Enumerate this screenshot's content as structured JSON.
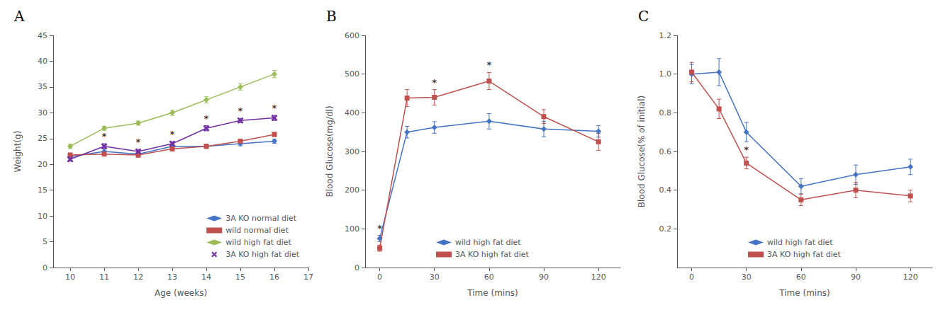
{
  "chart_data": [
    {
      "type": "line",
      "title": "A",
      "x_label": "Age (weeks)",
      "y_label": "Weight(g)",
      "xlim": [
        9.5,
        17
      ],
      "ylim": [
        0,
        45
      ],
      "xticks": [
        10,
        11,
        12,
        13,
        14,
        15,
        16,
        17
      ],
      "yticks": [
        0,
        5,
        10,
        15,
        20,
        25,
        30,
        35,
        40,
        45
      ],
      "legend": "lower right",
      "series": [
        {
          "name": "3A KO normal diet",
          "color": "#4472C4",
          "marker": "diamond",
          "x": [
            10,
            11,
            12,
            13,
            14,
            15,
            16
          ],
          "values": [
            21.5,
            22.5,
            22.0,
            23.5,
            23.5,
            24.0,
            24.5
          ],
          "yerr": [
            0.4,
            0.5,
            0.4,
            0.4,
            0.4,
            0.4,
            0.4
          ],
          "annotations": []
        },
        {
          "name": "wild normal diet",
          "color": "#C0504D",
          "marker": "square",
          "x": [
            10,
            11,
            12,
            13,
            14,
            15,
            16
          ],
          "values": [
            21.8,
            22.0,
            21.8,
            23.0,
            23.5,
            24.5,
            25.8
          ],
          "yerr": [
            0.4,
            0.4,
            0.4,
            0.4,
            0.4,
            0.4,
            0.4
          ],
          "annotations": []
        },
        {
          "name": "wild high fat diet",
          "color": "#9BBB59",
          "marker": "diamond",
          "x": [
            10,
            11,
            12,
            13,
            14,
            15,
            16
          ],
          "values": [
            23.5,
            27.0,
            28.0,
            30.0,
            32.5,
            35.0,
            37.5
          ],
          "yerr": [
            0.4,
            0.4,
            0.4,
            0.5,
            0.6,
            0.6,
            0.7
          ],
          "annotations": []
        },
        {
          "name": "3A KO high fat diet",
          "color": "#7030A0",
          "marker": "x",
          "x": [
            10,
            11,
            12,
            13,
            14,
            15,
            16
          ],
          "values": [
            21.0,
            23.5,
            22.5,
            24.0,
            27.0,
            28.5,
            29.0
          ],
          "yerr": [
            0.4,
            0.5,
            0.4,
            0.4,
            0.5,
            0.4,
            0.5
          ],
          "annotations": [
            {
              "x": 11,
              "text": "*"
            },
            {
              "x": 12,
              "text": "*"
            },
            {
              "x": 13,
              "text": "*"
            },
            {
              "x": 14,
              "text": "*"
            },
            {
              "x": 15,
              "text": "*"
            },
            {
              "x": 16,
              "text": "*"
            }
          ]
        }
      ]
    },
    {
      "type": "line",
      "title": "B",
      "x_label": "Time (mins)",
      "y_label": "Blood Glucose(mg/dl)",
      "xlim": [
        -8,
        132
      ],
      "ylim": [
        0,
        600
      ],
      "xticks": [
        0,
        30,
        60,
        90,
        120
      ],
      "yticks": [
        0,
        100,
        200,
        300,
        400,
        500,
        600
      ],
      "legend": "lower center",
      "series": [
        {
          "name": "wild high fat diet",
          "color": "#4472C4",
          "marker": "diamond",
          "x": [
            0,
            15,
            30,
            60,
            90,
            120
          ],
          "values": [
            75,
            350,
            362,
            378,
            358,
            352
          ],
          "yerr": [
            8,
            15,
            15,
            20,
            20,
            15
          ],
          "annotations": [
            {
              "x": 0,
              "text": "*"
            }
          ]
        },
        {
          "name": "3A KO high fat diet",
          "color": "#C0504D",
          "marker": "square",
          "x": [
            0,
            15,
            30,
            60,
            90,
            120
          ],
          "values": [
            50,
            438,
            440,
            482,
            390,
            325
          ],
          "yerr": [
            8,
            22,
            20,
            22,
            18,
            22
          ],
          "annotations": [
            {
              "x": 30,
              "text": "*"
            },
            {
              "x": 60,
              "text": "*"
            }
          ]
        }
      ]
    },
    {
      "type": "line",
      "title": "C",
      "x_label": "Time (mins)",
      "y_label": "Blood Glucose(% of initial)",
      "xlim": [
        -8,
        132
      ],
      "ylim": [
        0,
        1.2
      ],
      "xticks": [
        0,
        30,
        60,
        90,
        120
      ],
      "yticks": [
        0.2,
        0.4,
        0.6,
        0.8,
        {
          "value": 1.0,
          "label": "1.0"
        },
        1.2
      ],
      "legend": "lower center",
      "series": [
        {
          "name": "wild high fat diet",
          "color": "#4472C4",
          "marker": "diamond",
          "x": [
            0,
            15,
            30,
            60,
            90,
            120
          ],
          "values": [
            1.0,
            1.01,
            0.7,
            0.42,
            0.48,
            0.52
          ],
          "yerr": [
            0.05,
            0.07,
            0.05,
            0.04,
            0.05,
            0.04
          ],
          "annotations": []
        },
        {
          "name": "3A KO high fat diet",
          "color": "#C0504D",
          "marker": "square",
          "x": [
            0,
            15,
            30,
            60,
            90,
            120
          ],
          "values": [
            1.01,
            0.82,
            0.54,
            0.35,
            0.4,
            0.37
          ],
          "yerr": [
            0.05,
            0.05,
            0.03,
            0.03,
            0.04,
            0.03
          ],
          "annotations": [
            {
              "x": 30,
              "text": "*"
            }
          ]
        }
      ]
    }
  ]
}
